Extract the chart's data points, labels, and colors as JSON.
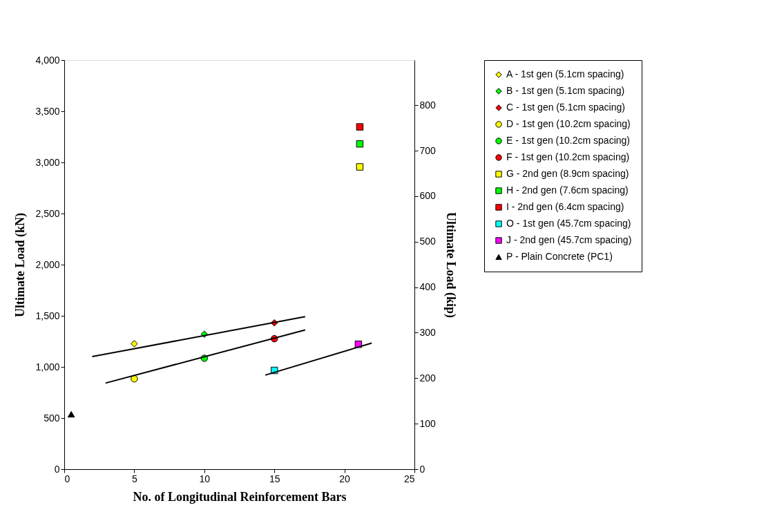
{
  "chart_data": {
    "type": "scatter",
    "xlabel": "No. of Longitudinal Reinforcement Bars",
    "ylabel": "Ultimate Load (kN)",
    "y2label": "Ultimate Load (kip)",
    "xlim": [
      0,
      25
    ],
    "xticks": [
      0,
      5,
      10,
      15,
      20,
      25
    ],
    "ylim": [
      0,
      4000
    ],
    "yticks": [
      0,
      500,
      {
        "value": 1000,
        "label": "1,000"
      },
      {
        "value": 1500,
        "label": "1,500"
      },
      {
        "value": 2000,
        "label": "2,000"
      },
      {
        "value": 2500,
        "label": "2,500"
      },
      {
        "value": 3000,
        "label": "3,000"
      },
      {
        "value": 3500,
        "label": "3,500"
      },
      {
        "value": 4000,
        "label": "4,000"
      }
    ],
    "y2lim": [
      0,
      899
    ],
    "y2ticks": [
      0,
      100,
      200,
      300,
      400,
      500,
      600,
      700,
      800
    ],
    "grid": false,
    "legend": "right",
    "series": [
      {
        "name": "A - 1st gen (5.1cm spacing)",
        "color": "#ffff00",
        "marker": "diamond",
        "x": [
          5
        ],
        "values": [
          1227
        ]
      },
      {
        "name": "B - 1st gen (5.1cm spacing)",
        "color": "#00ff00",
        "marker": "diamond",
        "x": [
          10
        ],
        "values": [
          1320
        ]
      },
      {
        "name": "C - 1st gen (5.1cm spacing)",
        "color": "#ff0000",
        "marker": "diamond",
        "x": [
          15
        ],
        "values": [
          1431
        ]
      },
      {
        "name": "D - 1st gen (10.2cm spacing)",
        "color": "#ffff00",
        "marker": "circle",
        "x": [
          5
        ],
        "values": [
          884
        ]
      },
      {
        "name": "E - 1st gen (10.2cm spacing)",
        "color": "#00ff00",
        "marker": "circle",
        "x": [
          10
        ],
        "values": [
          1085
        ]
      },
      {
        "name": "F - 1st gen (10.2cm spacing)",
        "color": "#ff0000",
        "marker": "circle",
        "x": [
          15
        ],
        "values": [
          1276
        ]
      },
      {
        "name": "G - 2nd gen (8.9cm spacing)",
        "color": "#ffff00",
        "marker": "square",
        "x": [
          21.1
        ],
        "values": [
          2956
        ]
      },
      {
        "name": "H - 2nd gen (7.6cm spacing)",
        "color": "#00ff00",
        "marker": "square",
        "x": [
          21.1
        ],
        "values": [
          3181
        ]
      },
      {
        "name": " I -  2nd gen (6.4cm spacing)",
        "color": "#ff0000",
        "marker": "square",
        "x": [
          21.1
        ],
        "values": [
          3347
        ]
      },
      {
        "name": "O - 1st gen (45.7cm spacing)",
        "color": "#00ffff",
        "marker": "square",
        "x": [
          15
        ],
        "values": [
          966
        ]
      },
      {
        "name": "J - 2nd gen (45.7cm spacing)",
        "color": "#ff00ff",
        "marker": "square",
        "x": [
          21
        ],
        "values": [
          1222
        ]
      },
      {
        "name": "P - Plain Concrete (PC1)",
        "color": "#000000",
        "marker": "triangle",
        "x": [
          0.5
        ],
        "values": [
          537
        ]
      },
      {
        "type": "line",
        "color": "#000000",
        "x": [
          2.0,
          17.2
        ],
        "values": [
          1101,
          1491
        ]
      },
      {
        "type": "line",
        "color": "#000000",
        "x": [
          2.95,
          17.2
        ],
        "values": [
          842,
          1362
        ]
      },
      {
        "type": "line",
        "color": "#000000",
        "x": [
          14.35,
          21.95
        ],
        "values": [
          920,
          1233
        ]
      }
    ]
  }
}
